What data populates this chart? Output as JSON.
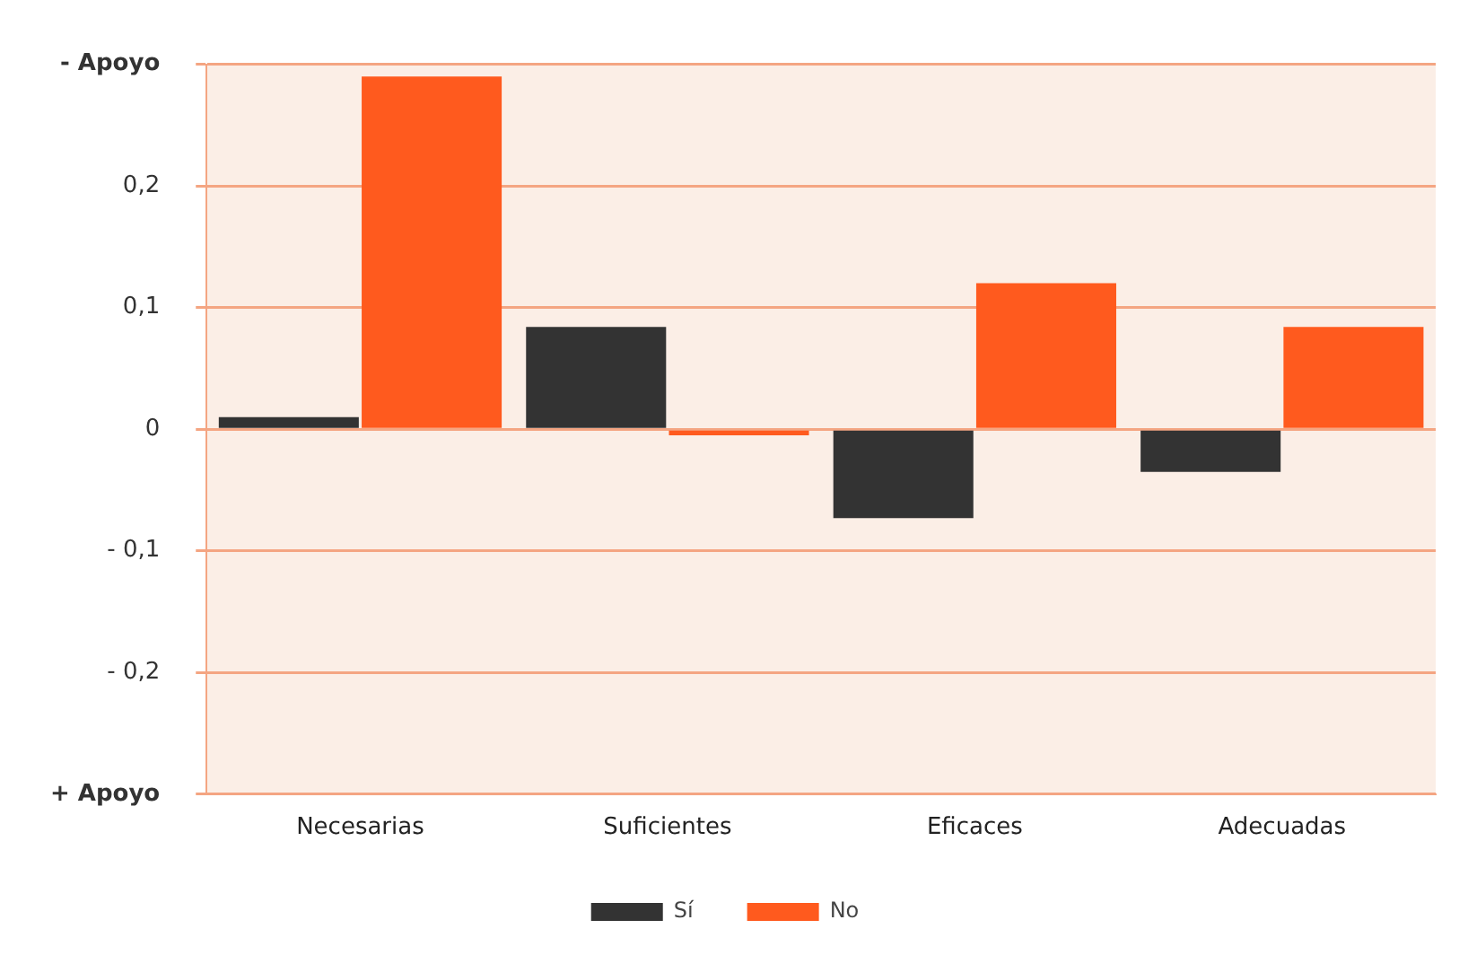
{
  "chart_data": {
    "type": "bar",
    "categories": [
      "Necesarias",
      "Suficientes",
      "Eficaces",
      "Adecuadas"
    ],
    "series": [
      {
        "name": "Sí",
        "color": "#333333",
        "values": [
          0.01,
          0.084,
          -0.073,
          -0.035
        ]
      },
      {
        "name": "No",
        "color": "#ff5a1e",
        "values": [
          0.29,
          -0.005,
          0.12,
          0.084
        ]
      }
    ],
    "ylim": [
      -0.3,
      0.3
    ],
    "yticks": [
      {
        "value": -0.3,
        "label": "+ Apoyo"
      },
      {
        "value": -0.2,
        "label": "- 0,2"
      },
      {
        "value": -0.1,
        "label": "- 0,1"
      },
      0,
      {
        "value": 0.1,
        "label": "0,1"
      },
      {
        "value": 0.2,
        "label": "0,2"
      },
      {
        "value": 0.3,
        "label": "- Apoyo"
      }
    ],
    "grid": "y",
    "legend": "bottom"
  }
}
